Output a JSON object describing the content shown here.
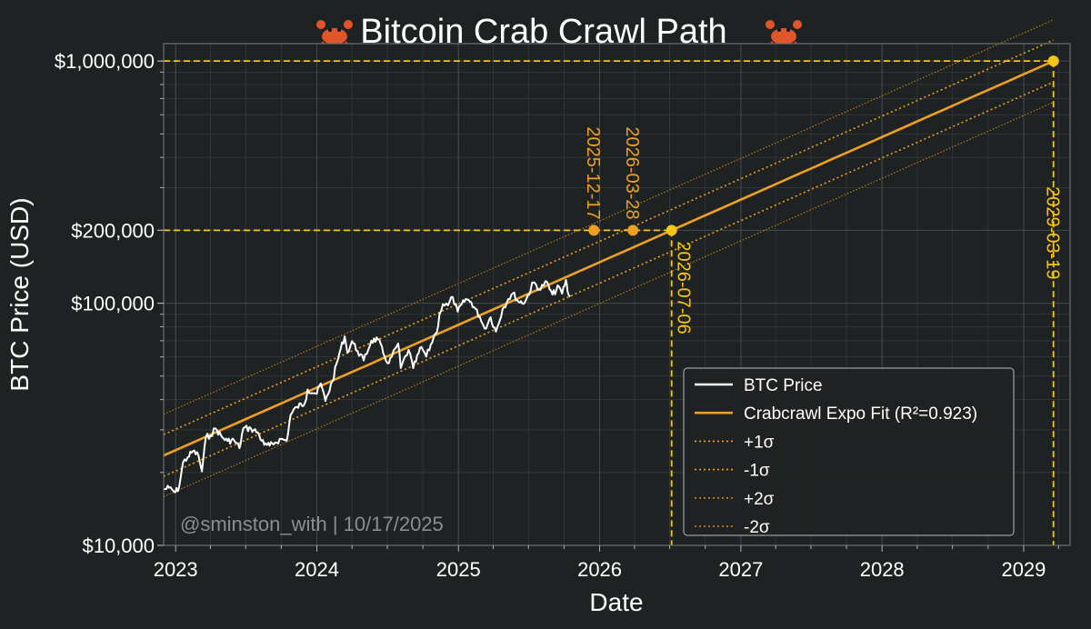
{
  "chart_data": {
    "type": "line",
    "title": "Bitcoin Crab Crawl Path",
    "title_icon": "crab-icon",
    "xlabel": "Date",
    "ylabel": "BTC Price (USD)",
    "y_scale": "log",
    "ylim": [
      10000,
      1180000
    ],
    "xlim": [
      "2022-12-01",
      "2029-05-01"
    ],
    "x_ticks": [
      "2023-01-01",
      "2024-01-01",
      "2025-01-01",
      "2026-01-01",
      "2027-01-01",
      "2028-01-01",
      "2029-01-01"
    ],
    "x_tick_labels": [
      "2023",
      "2024",
      "2025",
      "2026",
      "2027",
      "2028",
      "2029"
    ],
    "y_ticks": [
      10000,
      100000,
      200000,
      1000000
    ],
    "y_tick_labels": [
      "$10,000",
      "$100,000",
      "$200,000",
      "$1,000,000"
    ],
    "grid": true,
    "watermark": "@sminston_with | 10/17/2025",
    "legend": {
      "placement": "bottom-right",
      "entries": [
        {
          "label": "BTC Price",
          "color": "#ffffff",
          "style": "solid"
        },
        {
          "label": "Crabcrawl Expo Fit (R²=0.923)",
          "color": "#f0a020",
          "style": "solid"
        },
        {
          "label": "+1σ",
          "color": "#f0a020",
          "style": "dotted"
        },
        {
          "label": "-1σ",
          "color": "#f0a020",
          "style": "dotted"
        },
        {
          "label": "+2σ",
          "color": "#d08a18",
          "style": "dotted"
        },
        {
          "label": "-2σ",
          "color": "#d08a18",
          "style": "dotted"
        }
      ]
    },
    "fit": {
      "points": [
        {
          "date": "2022-12-01",
          "value": 23500
        },
        {
          "date": "2029-03-19",
          "value": 1000000
        }
      ],
      "sigma1_factor": 1.22,
      "sigma2_factor": 1.48
    },
    "series": [
      {
        "name": "BTC Price",
        "color": "#ffffff",
        "points": [
          [
            "2022-12-01",
            17000
          ],
          [
            "2022-12-15",
            17300
          ],
          [
            "2022-12-31",
            16550
          ],
          [
            "2023-01-10",
            17400
          ],
          [
            "2023-01-20",
            22000
          ],
          [
            "2023-02-01",
            23100
          ],
          [
            "2023-02-15",
            24500
          ],
          [
            "2023-03-01",
            23500
          ],
          [
            "2023-03-10",
            20200
          ],
          [
            "2023-03-20",
            28000
          ],
          [
            "2023-04-01",
            28400
          ],
          [
            "2023-04-14",
            30400
          ],
          [
            "2023-05-01",
            28000
          ],
          [
            "2023-05-15",
            27000
          ],
          [
            "2023-06-01",
            27200
          ],
          [
            "2023-06-15",
            25200
          ],
          [
            "2023-06-25",
            30500
          ],
          [
            "2023-07-15",
            30300
          ],
          [
            "2023-08-01",
            29300
          ],
          [
            "2023-08-18",
            26000
          ],
          [
            "2023-09-01",
            25800
          ],
          [
            "2023-09-15",
            26600
          ],
          [
            "2023-10-01",
            27500
          ],
          [
            "2023-10-15",
            27000
          ],
          [
            "2023-10-25",
            34500
          ],
          [
            "2023-11-10",
            37300
          ],
          [
            "2023-12-01",
            38700
          ],
          [
            "2023-12-08",
            44000
          ],
          [
            "2024-01-01",
            42300
          ],
          [
            "2024-01-11",
            46600
          ],
          [
            "2024-01-23",
            39500
          ],
          [
            "2024-02-10",
            47500
          ],
          [
            "2024-02-28",
            62000
          ],
          [
            "2024-03-13",
            73000
          ],
          [
            "2024-03-20",
            62500
          ],
          [
            "2024-04-01",
            69700
          ],
          [
            "2024-04-15",
            63500
          ],
          [
            "2024-05-01",
            58000
          ],
          [
            "2024-05-21",
            70000
          ],
          [
            "2024-06-07",
            71000
          ],
          [
            "2024-06-24",
            60300
          ],
          [
            "2024-07-05",
            56500
          ],
          [
            "2024-07-29",
            68200
          ],
          [
            "2024-08-05",
            54000
          ],
          [
            "2024-08-25",
            64200
          ],
          [
            "2024-09-06",
            53900
          ],
          [
            "2024-09-27",
            66000
          ],
          [
            "2024-10-10",
            60200
          ],
          [
            "2024-10-29",
            72400
          ],
          [
            "2024-11-06",
            75600
          ],
          [
            "2024-11-13",
            90000
          ],
          [
            "2024-11-22",
            99000
          ],
          [
            "2024-12-05",
            98000
          ],
          [
            "2024-12-17",
            106000
          ],
          [
            "2024-12-30",
            92300
          ],
          [
            "2025-01-20",
            104000
          ],
          [
            "2025-02-03",
            101000
          ],
          [
            "2025-02-25",
            88000
          ],
          [
            "2025-03-10",
            78500
          ],
          [
            "2025-03-25",
            87500
          ],
          [
            "2025-04-08",
            76300
          ],
          [
            "2025-04-25",
            94500
          ],
          [
            "2025-05-10",
            104000
          ],
          [
            "2025-05-22",
            110000
          ],
          [
            "2025-06-05",
            101500
          ],
          [
            "2025-06-22",
            101000
          ],
          [
            "2025-07-14",
            122000
          ],
          [
            "2025-08-01",
            113500
          ],
          [
            "2025-08-14",
            123300
          ],
          [
            "2025-09-01",
            108500
          ],
          [
            "2025-09-18",
            117000
          ],
          [
            "2025-09-26",
            109500
          ],
          [
            "2025-10-06",
            124700
          ],
          [
            "2025-10-10",
            112000
          ],
          [
            "2025-10-17",
            106500
          ]
        ]
      }
    ],
    "reference_lines": [
      {
        "axis": "y",
        "value": 200000,
        "color": "#f5c518",
        "style": "dashed"
      },
      {
        "axis": "y",
        "value": 1000000,
        "color": "#f5c518",
        "style": "dashed"
      },
      {
        "axis": "x",
        "value": "2026-07-06",
        "color": "#f5c518",
        "style": "dashed"
      },
      {
        "axis": "x",
        "value": "2029-03-19",
        "color": "#f5c518",
        "style": "dashed"
      }
    ],
    "markers": [
      {
        "date": "2025-12-17",
        "value": 200000,
        "label": "2025-12-17",
        "color": "#f0a020",
        "label_side": "above"
      },
      {
        "date": "2026-03-28",
        "value": 200000,
        "label": "2026-03-28",
        "color": "#f0a020",
        "label_side": "above"
      },
      {
        "date": "2026-07-06",
        "value": 200000,
        "label": "2026-07-06",
        "color": "#f5c518",
        "label_side": "below"
      },
      {
        "date": "2029-03-19",
        "value": 1000000,
        "label": "2029-03-19",
        "color": "#f5c518",
        "label_side": "below"
      }
    ]
  }
}
